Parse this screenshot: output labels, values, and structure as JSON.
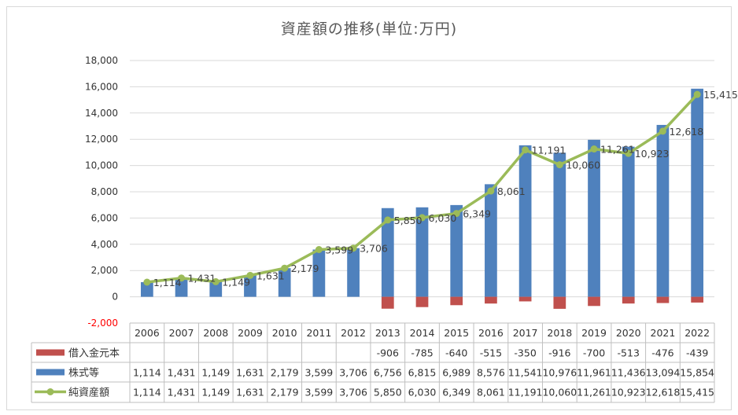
{
  "chart_data": {
    "type": "bar",
    "title": "資産額の推移(単位:万円)",
    "categories": [
      "2006",
      "2007",
      "2008",
      "2009",
      "2010",
      "2011",
      "2012",
      "2013",
      "2014",
      "2015",
      "2016",
      "2017",
      "2018",
      "2019",
      "2020",
      "2021",
      "2022"
    ],
    "ylim": [
      -2000,
      18000
    ],
    "yticks": [
      -2000,
      0,
      2000,
      4000,
      6000,
      8000,
      10000,
      12000,
      14000,
      16000,
      18000
    ],
    "ytick_labels": [
      "-2,000",
      "0",
      "2,000",
      "4,000",
      "6,000",
      "8,000",
      "10,000",
      "12,000",
      "14,000",
      "16,000",
      "18,000"
    ],
    "grid": true,
    "legend": "data-table",
    "series": [
      {
        "name": "借入金元本",
        "kind": "bar",
        "color": "#c0504d",
        "values": [
          null,
          null,
          null,
          null,
          null,
          null,
          null,
          -906,
          -785,
          -640,
          -515,
          -350,
          -916,
          -700,
          -513,
          -476,
          -439
        ],
        "labels": [
          "",
          "",
          "",
          "",
          "",
          "",
          "",
          "-906",
          "-785",
          "-640",
          "-515",
          "-350",
          "-916",
          "-700",
          "-513",
          "-476",
          "-439"
        ]
      },
      {
        "name": "株式等",
        "kind": "bar",
        "color": "#4f81bd",
        "values": [
          1114,
          1431,
          1149,
          1631,
          2179,
          3599,
          3706,
          6756,
          6815,
          6989,
          8576,
          11541,
          10976,
          11961,
          11436,
          13094,
          15854
        ],
        "labels": [
          "1,114",
          "1,431",
          "1,149",
          "1,631",
          "2,179",
          "3,599",
          "3,706",
          "6,756",
          "6,815",
          "6,989",
          "8,576",
          "11,541",
          "10,976",
          "11,961",
          "11,436",
          "13,094",
          "15,854"
        ]
      },
      {
        "name": "純資産額",
        "kind": "line",
        "color": "#9bbb59",
        "values": [
          1114,
          1431,
          1149,
          1631,
          2179,
          3599,
          3706,
          5850,
          6030,
          6349,
          8061,
          11191,
          10060,
          11261,
          10923,
          12618,
          15415
        ],
        "labels": [
          "1,114",
          "1,431",
          "1,149",
          "1,631",
          "2,179",
          "3,599",
          "3,706",
          "5,850",
          "6,030",
          "6,349",
          "8,061",
          "11,191",
          "10,060",
          "11,261",
          "10,923",
          "12,618",
          "15,415"
        ]
      }
    ]
  }
}
